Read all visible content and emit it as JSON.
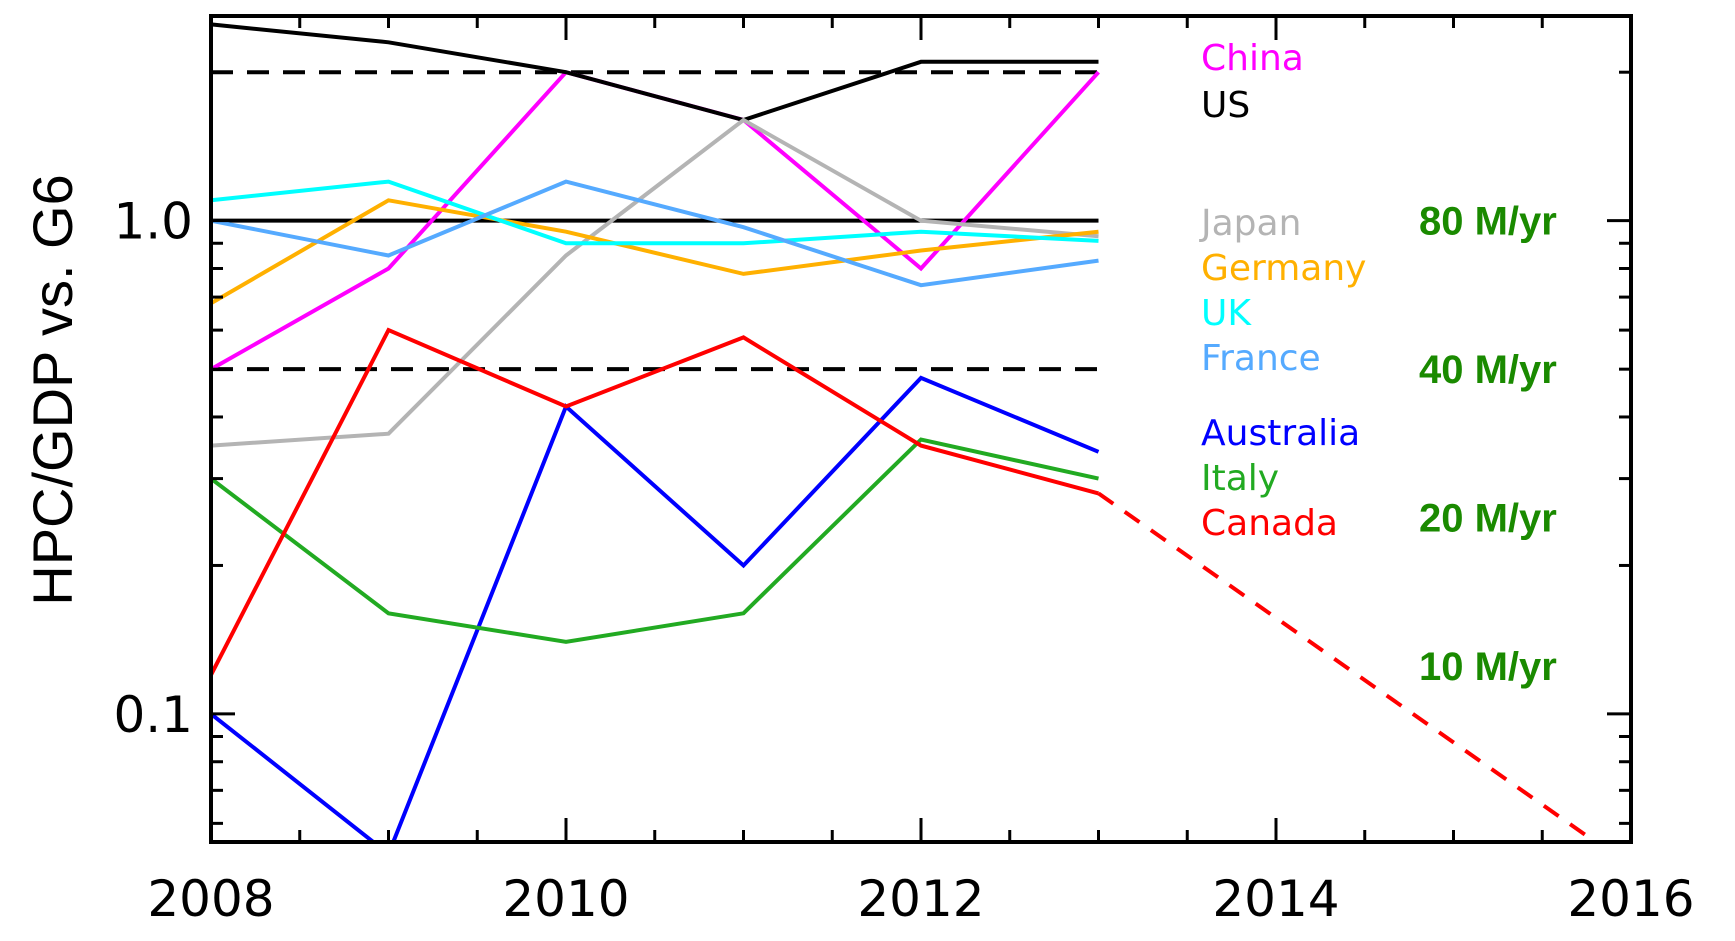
{
  "chart_data": {
    "type": "line",
    "ylabel": "HPC/GDP vs. G6",
    "yscale": "log",
    "xlim": [
      2008,
      2016
    ],
    "ylim": [
      0.055,
      2.6
    ],
    "x_ticks": [
      "2008",
      "2010",
      "2012",
      "2014",
      "2016"
    ],
    "y_ticks": [
      "1.0",
      "0.1"
    ],
    "x": [
      2008,
      2009,
      2010,
      2011,
      2012,
      2013
    ],
    "series": [
      {
        "name": "China",
        "color": "#ff00ff",
        "values": [
          0.5,
          0.8,
          2.0,
          1.6,
          0.8,
          2.0
        ]
      },
      {
        "name": "US",
        "color": "#000000",
        "values": [
          2.5,
          2.3,
          2.0,
          1.6,
          2.1,
          2.1
        ]
      },
      {
        "name": "Japan",
        "color": "#b4b4b4",
        "values": [
          0.35,
          0.37,
          0.85,
          1.6,
          1.0,
          0.93
        ]
      },
      {
        "name": "Germany",
        "color": "#ffb000",
        "values": [
          0.68,
          1.1,
          0.95,
          0.78,
          0.87,
          0.95
        ]
      },
      {
        "name": "UK",
        "color": "#00ffff",
        "values": [
          1.1,
          1.2,
          0.9,
          0.9,
          0.95,
          0.91
        ]
      },
      {
        "name": "France",
        "color": "#55aaff",
        "values": [
          1.0,
          0.85,
          1.2,
          0.97,
          0.74,
          0.83
        ]
      },
      {
        "name": "Australia",
        "color": "#0000ff",
        "values": [
          0.1,
          0.052,
          0.42,
          0.2,
          0.48,
          0.34
        ]
      },
      {
        "name": "Italy",
        "color": "#22aa22",
        "values": [
          0.3,
          0.16,
          0.14,
          0.16,
          0.36,
          0.3
        ]
      },
      {
        "name": "Canada",
        "color": "#ff0000",
        "values": [
          0.12,
          0.6,
          0.42,
          0.58,
          0.35,
          0.28
        ]
      }
    ],
    "projection": {
      "series": "Canada",
      "style": "dashed",
      "color": "#ff0000",
      "x": [
        2013,
        2015.8
      ],
      "values": [
        0.28,
        0.055
      ]
    },
    "reference_lines": [
      {
        "value": 2.0,
        "style": "dashed",
        "color": "#000000"
      },
      {
        "value": 1.0,
        "style": "solid",
        "color": "#000000"
      },
      {
        "value": 0.5,
        "style": "dashed",
        "color": "#000000"
      }
    ],
    "rate_labels": [
      {
        "text": "80 M/yr",
        "value": 1.0
      },
      {
        "text": "40 M/yr",
        "value": 0.5
      },
      {
        "text": "20 M/yr",
        "value": 0.25
      },
      {
        "text": "10 M/yr",
        "value": 0.125
      }
    ],
    "rate_color": "#1a8a00",
    "legend_placement": "right, inside plot"
  }
}
